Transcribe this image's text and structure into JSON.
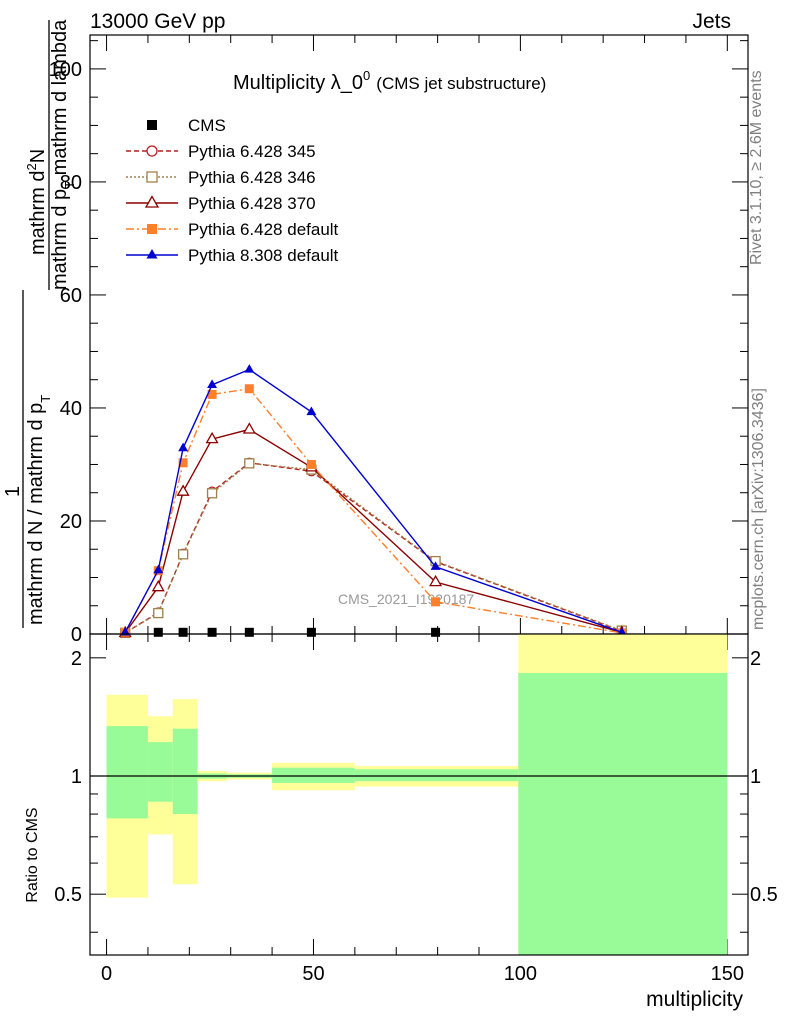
{
  "header": {
    "left": "13000 GeV pp",
    "right": "Jets"
  },
  "side_labels": {
    "rivet": "Rivet 3.1.10, ≥ 2.6M events",
    "site": "mcplots.cern.ch [arXiv:1306.3436]"
  },
  "watermark": "CMS_2021_I1920187",
  "main_title": {
    "main": "Multiplicity λ_0",
    "sup": "0",
    "sub": "(CMS jet substructure)"
  },
  "ylabel_main": {
    "num_a": "mathrm d",
    "num_sup": "2",
    "num_b": "N",
    "den_a": "mathrm d p",
    "den_sub": "T",
    "den_b": " mathrm d lambda",
    "one": "1",
    "lower": "mathrm d N / mathrm d p",
    "lower_sub": "T"
  },
  "ylabel_ratio": "Ratio to CMS",
  "xlabel": "multiplicity",
  "chart_data": [
    {
      "type": "line",
      "panel": "main",
      "xlim": [
        -4,
        155
      ],
      "ylim": [
        0,
        106
      ],
      "x_ticks": [
        0,
        50,
        100,
        150
      ],
      "y_ticks": [
        0,
        20,
        40,
        60,
        80,
        100
      ],
      "x_tick_labels": [
        "0",
        "50",
        "100",
        "150"
      ],
      "y_tick_labels": [
        "0",
        "20",
        "40",
        "60",
        "80",
        "100"
      ],
      "legend_position": "top-left",
      "series": [
        {
          "name": "CMS",
          "color": "#000000",
          "marker": "square-filled",
          "line": "none",
          "x": [
            12.5,
            18.5,
            25.5,
            34.5,
            49.5,
            79.5
          ],
          "y": [
            0.3,
            0.3,
            0.3,
            0.3,
            0.3,
            0.3
          ]
        },
        {
          "name": "Pythia 6.428 345",
          "color": "#b22222",
          "marker": "circle-open",
          "line": "dashed",
          "x": [
            4.5,
            12.5,
            18.5,
            25.5,
            34.5,
            49.5,
            79.5,
            124.5
          ],
          "y": [
            0.2,
            3.8,
            14.2,
            25.2,
            30.3,
            28.8,
            12.8,
            0.5
          ]
        },
        {
          "name": "Pythia 6.428 346",
          "color": "#a0804a",
          "marker": "square-open",
          "line": "dotted",
          "x": [
            4.5,
            12.5,
            18.5,
            25.5,
            34.5,
            49.5,
            79.5,
            124.5
          ],
          "y": [
            0.2,
            3.7,
            14.1,
            24.9,
            30.2,
            29.1,
            12.9,
            0.6
          ]
        },
        {
          "name": "Pythia 6.428 370",
          "color": "#8b0000",
          "marker": "triangle-open",
          "line": "solid",
          "x": [
            4.5,
            12.5,
            18.5,
            25.5,
            34.5,
            49.5,
            79.5,
            124.5
          ],
          "y": [
            0.2,
            8.3,
            25.2,
            34.5,
            36.2,
            29.5,
            9.2,
            0.3
          ]
        },
        {
          "name": "Pythia 6.428 default",
          "color": "#ff7f2a",
          "marker": "square-filled",
          "line": "dashdot",
          "x": [
            4.5,
            12.5,
            18.5,
            25.5,
            34.5,
            49.5,
            79.5,
            124.5
          ],
          "y": [
            0.3,
            11.2,
            30.3,
            42.4,
            43.4,
            30.0,
            5.7,
            0.2
          ]
        },
        {
          "name": "Pythia 8.308 default",
          "color": "#0000d0",
          "marker": "triangle-filled",
          "line": "solid",
          "x": [
            4.5,
            12.5,
            18.5,
            25.5,
            34.5,
            49.5,
            79.5,
            124.5
          ],
          "y": [
            0.3,
            11.3,
            32.9,
            44.1,
            46.8,
            39.3,
            11.9,
            0.3
          ]
        }
      ]
    },
    {
      "type": "area",
      "panel": "ratio",
      "ylabel": "Ratio to CMS",
      "xlabel": "multiplicity",
      "xlim": [
        -4,
        155
      ],
      "ylim": [
        0.35,
        2.3
      ],
      "x_ticks": [
        0,
        50,
        100,
        150
      ],
      "y_ticks": [
        0.5,
        1,
        2
      ],
      "x_tick_labels": [
        "0",
        "50",
        "100",
        "150"
      ],
      "y_tick_labels": [
        "0.5",
        "1",
        "2"
      ],
      "reference_line": 1,
      "bins": [
        {
          "x0": 0,
          "x1": 10,
          "stat_lo": 0.78,
          "stat_hi": 1.34,
          "tot_lo": 0.49,
          "tot_hi": 1.61
        },
        {
          "x0": 10,
          "x1": 16,
          "stat_lo": 0.86,
          "stat_hi": 1.22,
          "tot_lo": 0.71,
          "tot_hi": 1.42
        },
        {
          "x0": 16,
          "x1": 22,
          "stat_lo": 0.8,
          "stat_hi": 1.32,
          "tot_lo": 0.53,
          "tot_hi": 1.57
        },
        {
          "x0": 22,
          "x1": 29,
          "stat_lo": 0.985,
          "stat_hi": 1.015,
          "tot_lo": 0.97,
          "tot_hi": 1.03
        },
        {
          "x0": 29,
          "x1": 40,
          "stat_lo": 0.99,
          "stat_hi": 1.01,
          "tot_lo": 0.98,
          "tot_hi": 1.02
        },
        {
          "x0": 40,
          "x1": 60,
          "stat_lo": 0.96,
          "stat_hi": 1.05,
          "tot_lo": 0.92,
          "tot_hi": 1.08
        },
        {
          "x0": 60,
          "x1": 99.5,
          "stat_lo": 0.97,
          "stat_hi": 1.04,
          "tot_lo": 0.94,
          "tot_hi": 1.06
        },
        {
          "x0": 99.5,
          "x1": 150,
          "stat_lo": 0.35,
          "stat_hi": 1.83,
          "tot_lo": 0.35,
          "tot_hi": 2.3
        }
      ],
      "band_colors": {
        "stat": "#98fb98",
        "total": "#ffff99"
      }
    }
  ]
}
